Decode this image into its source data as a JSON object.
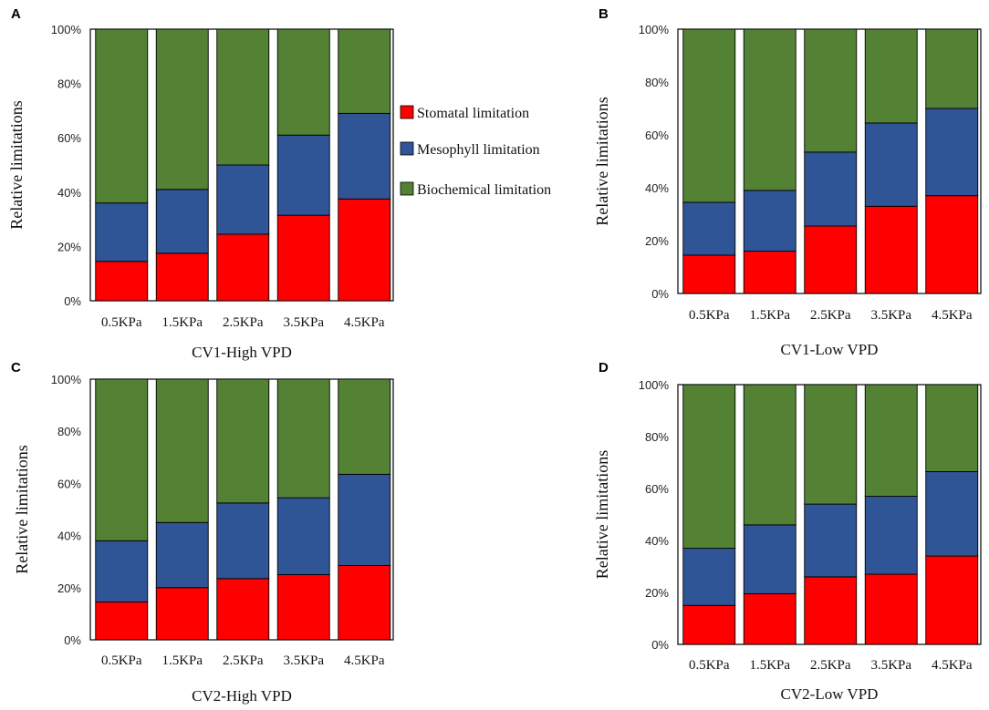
{
  "colors": {
    "stomatal": "#ff0000",
    "mesophyll": "#2f5597",
    "biochemical": "#548235",
    "frame": "#000000"
  },
  "legend": [
    "Stomatal limitation",
    "Mesophyll limitation",
    "Biochemical limitation"
  ],
  "chart_data": [
    {
      "panel": "A",
      "type": "bar",
      "stacked": true,
      "title": "",
      "xlabel": "CV1-High  VPD",
      "ylabel": "Relative  limitations",
      "categories": [
        "0.5KPa",
        "1.5KPa",
        "2.5KPa",
        "3.5KPa",
        "4.5KPa"
      ],
      "ylim": [
        0,
        100
      ],
      "yticks": [
        "0%",
        "20%",
        "40%",
        "60%",
        "80%",
        "100%"
      ],
      "series": [
        {
          "name": "Stomatal limitation",
          "values": [
            14.5,
            17.5,
            24.5,
            31.5,
            37.5
          ]
        },
        {
          "name": "Mesophyll limitation",
          "values": [
            21.5,
            23.5,
            25.5,
            29.5,
            31.5
          ]
        },
        {
          "name": "Biochemical limitation",
          "values": [
            64,
            59,
            50,
            39,
            31
          ]
        }
      ]
    },
    {
      "panel": "B",
      "type": "bar",
      "stacked": true,
      "title": "",
      "xlabel": "CV1-Low  VPD",
      "ylabel": "Relative  limitations",
      "categories": [
        "0.5KPa",
        "1.5KPa",
        "2.5KPa",
        "3.5KPa",
        "4.5KPa"
      ],
      "ylim": [
        0,
        100
      ],
      "yticks": [
        "0%",
        "20%",
        "40%",
        "60%",
        "80%",
        "100%"
      ],
      "series": [
        {
          "name": "Stomatal limitation",
          "values": [
            14.5,
            16,
            25.5,
            33,
            37
          ]
        },
        {
          "name": "Mesophyll limitation",
          "values": [
            20,
            23,
            28,
            31.5,
            33
          ]
        },
        {
          "name": "Biochemical limitation",
          "values": [
            65.5,
            61,
            46.5,
            35.5,
            30
          ]
        }
      ]
    },
    {
      "panel": "C",
      "type": "bar",
      "stacked": true,
      "title": "",
      "xlabel": "CV2-High  VPD",
      "ylabel": "Relative  limitations",
      "categories": [
        "0.5KPa",
        "1.5KPa",
        "2.5KPa",
        "3.5KPa",
        "4.5KPa"
      ],
      "ylim": [
        0,
        100
      ],
      "yticks": [
        "0%",
        "20%",
        "40%",
        "60%",
        "80%",
        "100%"
      ],
      "series": [
        {
          "name": "Stomatal limitation",
          "values": [
            14.5,
            20,
            23.5,
            25,
            28.5
          ]
        },
        {
          "name": "Mesophyll limitation",
          "values": [
            23.5,
            25,
            29,
            29.5,
            35
          ]
        },
        {
          "name": "Biochemical limitation",
          "values": [
            62,
            55,
            47.5,
            45.5,
            36.5
          ]
        }
      ]
    },
    {
      "panel": "D",
      "type": "bar",
      "stacked": true,
      "title": "",
      "xlabel": "CV2-Low  VPD",
      "ylabel": "Relative  limitations",
      "categories": [
        "0.5KPa",
        "1.5KPa",
        "2.5KPa",
        "3.5KPa",
        "4.5KPa"
      ],
      "ylim": [
        0,
        100
      ],
      "yticks": [
        "0%",
        "20%",
        "40%",
        "60%",
        "80%",
        "100%"
      ],
      "series": [
        {
          "name": "Stomatal limitation",
          "values": [
            15,
            19.5,
            26,
            27,
            34
          ]
        },
        {
          "name": "Mesophyll limitation",
          "values": [
            22,
            26.5,
            28,
            30,
            32.5
          ]
        },
        {
          "name": "Biochemical limitation",
          "values": [
            63,
            54,
            46,
            43,
            33.5
          ]
        }
      ]
    }
  ]
}
